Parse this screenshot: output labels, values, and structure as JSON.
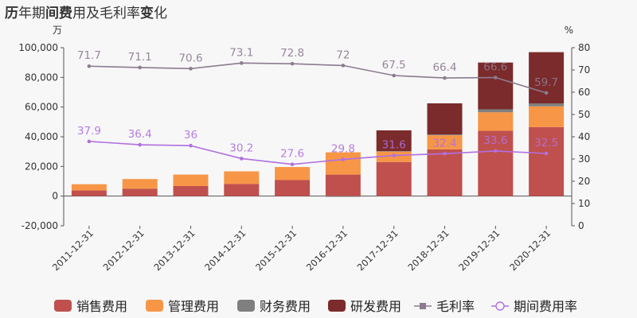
{
  "title": {
    "segments": [
      {
        "text": "历",
        "bold": true
      },
      {
        "text": "年期",
        "bold": false
      },
      {
        "text": "间",
        "bold": true
      },
      {
        "text": "费",
        "bold": true
      },
      {
        "text": "用及毛利率",
        "bold": false
      },
      {
        "text": "变",
        "bold": true
      },
      {
        "text": "化",
        "bold": false
      }
    ]
  },
  "chart_data": {
    "type": "bar",
    "stacked": true,
    "categories": [
      "2011-12-31",
      "2012-12-31",
      "2013-12-31",
      "2014-12-31",
      "2015-12-31",
      "2016-12-31",
      "2017-12-31",
      "2018-12-31",
      "2019-12-31",
      "2020-12-31"
    ],
    "ylabel_left": "万",
    "ylabel_right": "%",
    "ylim_left": [
      -20000,
      100000
    ],
    "yticks_left": [
      "-20,000",
      "0",
      "20,000",
      "40,000",
      "60,000",
      "80,000",
      "100,000"
    ],
    "ylim_right": [
      0,
      80
    ],
    "yticks_right": [
      "0",
      "10",
      "20",
      "30",
      "40",
      "50",
      "60",
      "70",
      "80"
    ],
    "grid": false,
    "legend_position": "bottom",
    "series": [
      {
        "name": "销售费用",
        "kind": "bar",
        "color": "#c0504d",
        "values": [
          3800,
          5000,
          6800,
          8200,
          10800,
          14500,
          23000,
          31500,
          44000,
          46500
        ]
      },
      {
        "name": "管理费用",
        "kind": "bar",
        "color": "#f79646",
        "values": [
          4200,
          6500,
          7700,
          8500,
          8800,
          15000,
          7000,
          9500,
          12500,
          14000
        ]
      },
      {
        "name": "财务费用",
        "kind": "bar",
        "color": "#7f7f7f",
        "values": [
          0,
          0,
          0,
          0,
          0,
          -500,
          300,
          500,
          2000,
          2000
        ]
      },
      {
        "name": "研发费用",
        "kind": "bar",
        "color": "#7b2b2b",
        "values": [
          0,
          0,
          0,
          0,
          0,
          0,
          14000,
          21000,
          31500,
          34500
        ]
      },
      {
        "name": "毛利率",
        "kind": "line",
        "axis": "right",
        "color": "#8c7b8f",
        "values": [
          71.7,
          71.1,
          70.6,
          73.1,
          72.8,
          72,
          67.5,
          66.4,
          66.6,
          59.7
        ]
      },
      {
        "name": "期间费用率",
        "kind": "line",
        "axis": "right",
        "color": "#b070e0",
        "values": [
          37.9,
          36.4,
          36,
          30.2,
          27.6,
          29.8,
          31.6,
          32.4,
          33.6,
          32.5
        ]
      }
    ]
  }
}
